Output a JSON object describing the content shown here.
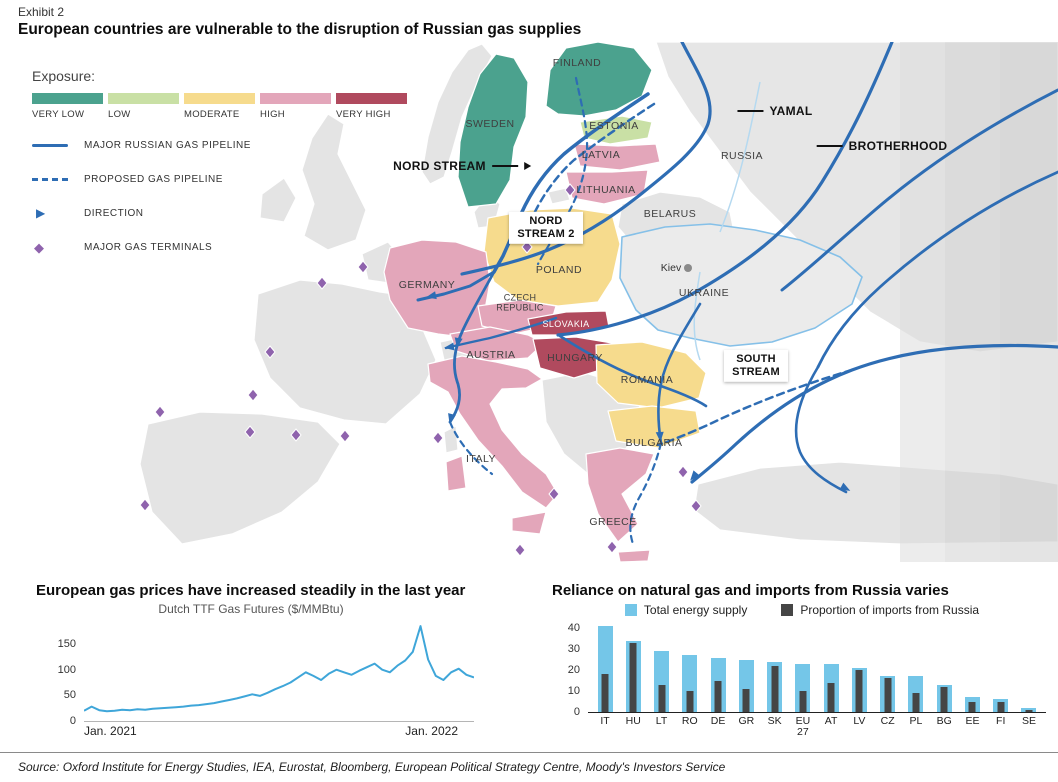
{
  "exhibit": {
    "label": "Exhibit 2",
    "title": "European countries are vulnerable to the disruption of Russian gas supplies"
  },
  "source": "Source: Oxford Institute for Energy Studies, IEA, Eurostat, Bloomberg, European Political Strategy Centre, Moody's Investors Service",
  "map": {
    "legend": {
      "exposure_title": "Exposure:",
      "levels": [
        {
          "label": "VERY LOW",
          "color": "#4ba28e"
        },
        {
          "label": "LOW",
          "color": "#c9e0a5"
        },
        {
          "label": "MODERATE",
          "color": "#f6db8d"
        },
        {
          "label": "HIGH",
          "color": "#e3a6ba"
        },
        {
          "label": "VERY HIGH",
          "color": "#b04a5e"
        }
      ],
      "items": [
        {
          "symbol": "solid-line",
          "label": "MAJOR RUSSIAN GAS PIPELINE"
        },
        {
          "symbol": "dashed-line",
          "label": "PROPOSED GAS PIPELINE"
        },
        {
          "symbol": "arrow",
          "label": "DIRECTION"
        },
        {
          "symbol": "diamond",
          "label": "MAJOR GAS TERMINALS"
        }
      ]
    },
    "colors": {
      "pipeline": "#2e6db4",
      "terminal": "#8f63ad",
      "no_data_country": "#e4e4e4",
      "ukraine_border": "#85c0e8"
    },
    "labels": {
      "sweden": "SWEDEN",
      "finland": "FINLAND",
      "estonia": "ESTONIA",
      "latvia": "LATVIA",
      "lithuania": "LITHUANIA",
      "russia": "RUSSIA",
      "belarus": "BELARUS",
      "ukraine": "UKRAINE",
      "kiev": "Kiev",
      "poland": "POLAND",
      "germany": "GERMANY",
      "czech": "CZECH REPUBLIC",
      "slovakia": "SLOVAKIA",
      "austria": "AUSTRIA",
      "hungary": "HUNGARY",
      "romania": "ROMANIA",
      "bulgaria": "BULGARIA",
      "italy": "ITALY",
      "greece": "GREECE",
      "nord_stream": "NORD STREAM",
      "nord_stream_2": "NORD STREAM 2",
      "yamal": "YAMAL",
      "brotherhood": "BROTHERHOOD",
      "south_stream": "SOUTH STREAM"
    },
    "exposure_by_country": {
      "sweden": "VERY LOW",
      "finland": "VERY LOW",
      "estonia": "LOW",
      "latvia": "HIGH",
      "lithuania": "HIGH",
      "germany": "HIGH",
      "poland": "MODERATE",
      "czech_republic": "HIGH",
      "slovakia": "VERY HIGH",
      "austria": "HIGH",
      "hungary": "VERY HIGH",
      "italy": "HIGH",
      "romania": "MODERATE",
      "bulgaria": "MODERATE",
      "greece": "HIGH"
    }
  },
  "chart_data": [
    {
      "type": "line",
      "title": "European gas prices have increased steadily in the last year",
      "subtitle": "Dutch TTF Gas Futures ($/MMBtu)",
      "x_axis_labels": [
        "Jan. 2021",
        "Jan. 2022"
      ],
      "y_ticks": [
        0,
        50,
        100,
        150
      ],
      "ylim": [
        0,
        195
      ],
      "color": "#3fa6d9",
      "series_name": "Dutch TTF Gas Futures ($/MMBtu)",
      "values": [
        20,
        28,
        21,
        19,
        20,
        22,
        21,
        23,
        22,
        24,
        25,
        26,
        27,
        28,
        30,
        31,
        33,
        35,
        38,
        41,
        44,
        48,
        52,
        49,
        55,
        62,
        68,
        75,
        85,
        95,
        88,
        80,
        92,
        100,
        95,
        90,
        98,
        105,
        112,
        100,
        95,
        108,
        118,
        135,
        185,
        120,
        88,
        80,
        95,
        102,
        90,
        85
      ]
    },
    {
      "type": "bar",
      "title": "Reliance on natural gas and imports from Russia varies",
      "categories": [
        "IT",
        "HU",
        "LT",
        "RO",
        "DE",
        "GR",
        "SK",
        "EU 27",
        "AT",
        "LV",
        "CZ",
        "PL",
        "BG",
        "EE",
        "FI",
        "SE"
      ],
      "series": [
        {
          "name": "Total energy supply",
          "color": "#74c6e8",
          "values": [
            41,
            34,
            29,
            27,
            26,
            25,
            24,
            23,
            23,
            21,
            17,
            17,
            13,
            7,
            6,
            2
          ]
        },
        {
          "name": "Proportion of imports from Russia",
          "color": "#454545",
          "values": [
            18,
            33,
            13,
            10,
            15,
            11,
            22,
            10,
            14,
            20,
            16,
            9,
            12,
            5,
            5,
            1
          ]
        }
      ],
      "y_ticks": [
        0,
        10,
        20,
        30,
        40
      ],
      "ylim": [
        0,
        42
      ],
      "legend_position": "top"
    }
  ]
}
